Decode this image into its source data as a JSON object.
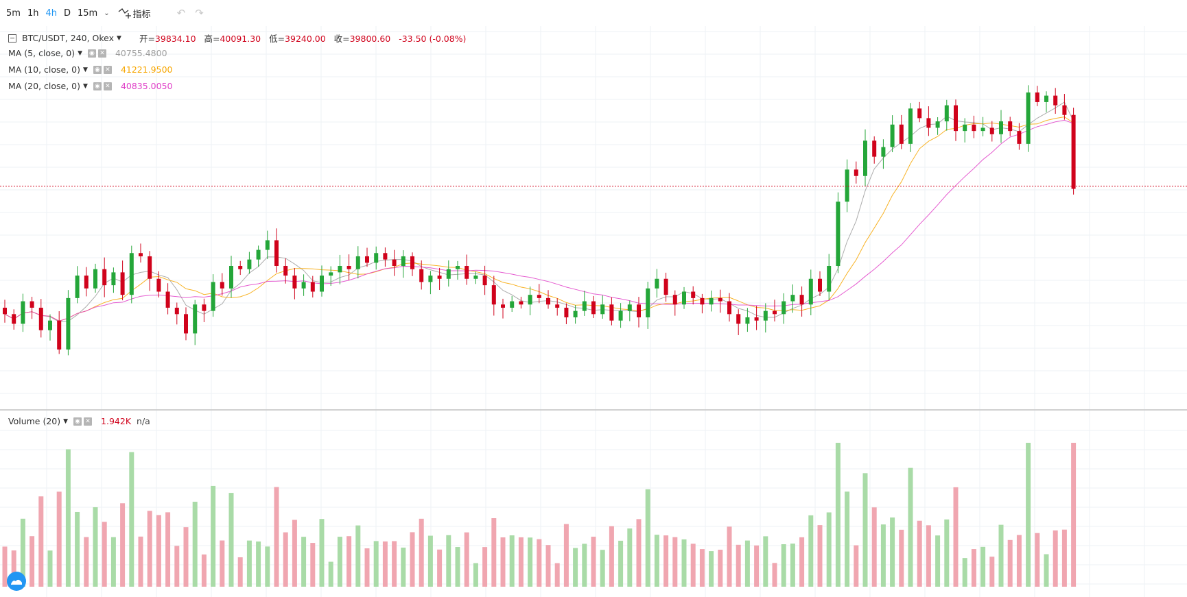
{
  "toolbar": {
    "timeframes": [
      "5m",
      "1h",
      "4h",
      "D",
      "15m"
    ],
    "active_timeframe": "4h",
    "indicators_label": "指标"
  },
  "legend": {
    "symbol": "BTC/USDT, 240, Okex",
    "ohlc": {
      "open_label": "开=",
      "open": "39834.10",
      "high_label": "高=",
      "high": "40091.30",
      "low_label": "低=",
      "low": "39240.00",
      "close_label": "收=",
      "close": "39800.60",
      "change": "-33.50 (-0.08%)"
    },
    "ma": [
      {
        "label": "MA (5, close, 0)",
        "value": "40755.4800",
        "color": "#9e9e9e"
      },
      {
        "label": "MA (10, close, 0)",
        "value": "41221.9500",
        "color": "#f7a600"
      },
      {
        "label": "MA (20, close, 0)",
        "value": "40835.0050",
        "color": "#e040c8"
      }
    ],
    "volume": {
      "label": "Volume (20)",
      "value": "1.942K",
      "extra": "n/a"
    }
  },
  "colors": {
    "up": "#24a639",
    "down": "#d0021b",
    "up_vol": "#a9dba7",
    "down_vol": "#f0a6b0",
    "grid": "#edf2f5"
  },
  "chart_data": {
    "type": "candlestick",
    "close": [
      37500,
      37200,
      37900,
      37700,
      37000,
      37300,
      36400,
      38000,
      38700,
      38300,
      38900,
      38400,
      38800,
      38100,
      39400,
      39300,
      38600,
      38200,
      37700,
      37500,
      36900,
      37800,
      37600,
      38500,
      38300,
      39000,
      38900,
      39200,
      39500,
      39800,
      39000,
      38700,
      38300,
      38500,
      38200,
      38700,
      38800,
      39000,
      38900,
      39300,
      39100,
      39400,
      39200,
      39000,
      39300,
      38900,
      38500,
      38700,
      38600,
      38900,
      39000,
      38600,
      38700,
      38400,
      37800,
      37700,
      37900,
      37800,
      38100,
      38000,
      37800,
      37700,
      37400,
      37600,
      37900,
      37500,
      37800,
      37300,
      37600,
      37800,
      37400,
      38300,
      38600,
      38100,
      37800,
      38200,
      38000,
      37800,
      38000,
      37900,
      37500,
      37200,
      37400,
      37300,
      37600,
      37500,
      37900,
      38100,
      37800,
      38600,
      38200,
      39000,
      41000,
      42000,
      41800,
      42900,
      42400,
      42700,
      43400,
      42800,
      43900,
      43600,
      43300,
      43500,
      44000,
      43200,
      43400,
      43200,
      43300,
      43100,
      43500,
      43200,
      42800,
      44400,
      44100,
      44300,
      44000,
      43700,
      41400
    ]
  }
}
